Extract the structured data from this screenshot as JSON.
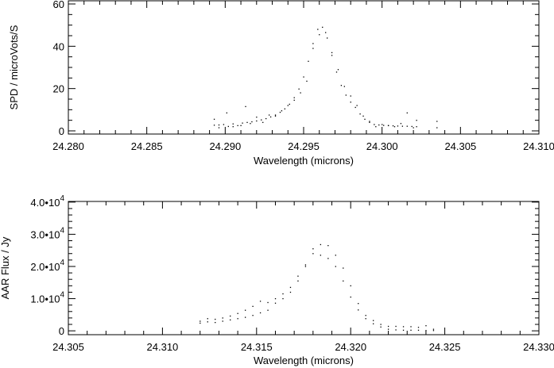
{
  "chart_data": [
    {
      "type": "scatter",
      "xlabel": "Wavelength (microns)",
      "ylabel": "SPD / microVots/S",
      "xlim": [
        24.28,
        24.31
      ],
      "ylim": [
        -1.5,
        61.5
      ],
      "xticks": [
        {
          "value": 24.28,
          "label": "24.280"
        },
        {
          "value": 24.285,
          "label": "24.285"
        },
        {
          "value": 24.29,
          "label": "24.290"
        },
        {
          "value": 24.295,
          "label": "24.295"
        },
        {
          "value": 24.3,
          "label": "24.300"
        },
        {
          "value": 24.305,
          "label": "24.305"
        },
        {
          "value": 24.31,
          "label": "24.310"
        }
      ],
      "x_minor_step": 0.001,
      "yticks": [
        {
          "value": 0,
          "label": "0"
        },
        {
          "value": 20,
          "label": "20"
        },
        {
          "value": 40,
          "label": "40"
        },
        {
          "value": 60,
          "label": "60"
        }
      ],
      "y_minor_step": 5,
      "grid": false,
      "marker_color": "#000000",
      "series": [
        {
          "x": [
            24.2893,
            24.2896,
            24.2899,
            24.2902,
            24.2905,
            24.2908,
            24.2911,
            24.2914,
            24.2917,
            24.292,
            24.2923,
            24.2926,
            24.2929,
            24.2932,
            24.2935,
            24.2938,
            24.2941,
            24.2944,
            24.2947,
            24.295,
            24.2953,
            24.2956,
            24.2959,
            24.2962,
            24.2965,
            24.2968,
            24.2971,
            24.2974,
            24.2977,
            24.298,
            24.2983,
            24.2986,
            24.2989,
            24.2992,
            24.2995,
            24.2998,
            24.3001,
            24.3004,
            24.3007,
            24.301,
            24.3013,
            24.3016,
            24.3019,
            24.3022,
            24.3035
          ],
          "y": [
            2.7,
            2.8,
            3.0,
            2.1,
            3.3,
            2.5,
            3.7,
            4.0,
            4.3,
            4.7,
            5.2,
            5.8,
            6.6,
            7.5,
            8.8,
            10.4,
            12.6,
            15.7,
            19.8,
            25.5,
            32.9,
            41.3,
            48.0,
            49.0,
            43.9,
            35.7,
            27.8,
            21.5,
            16.9,
            13.6,
            11.1,
            8.0,
            5.5,
            4.0,
            3.0,
            2.8,
            2.6,
            2.5,
            2.4,
            2.3,
            2.2,
            2.2,
            2.1,
            2.0,
            1.5
          ]
        },
        {
          "x": [
            24.2893,
            24.2896,
            24.2901,
            24.2905,
            24.291,
            24.2913,
            24.2916,
            24.292,
            24.2924,
            24.2928,
            24.2932,
            24.2936,
            24.294,
            24.2944,
            24.2948,
            24.2952,
            24.2956,
            24.296,
            24.2964,
            24.2968,
            24.2972,
            24.2976,
            24.298,
            24.2984,
            24.2988,
            24.2992,
            24.2996,
            24.3,
            24.3004,
            24.3008,
            24.3012,
            24.3016,
            24.302,
            24.3022,
            24.3035
          ],
          "y": [
            5.5,
            1.5,
            8.5,
            2.0,
            2.5,
            11.5,
            3.5,
            6.5,
            4.0,
            7.5,
            7.0,
            9.5,
            12.0,
            14.5,
            18.0,
            23.5,
            39.0,
            45.5,
            46.5,
            37.0,
            29.0,
            21.0,
            16.5,
            12.0,
            7.0,
            4.5,
            2.0,
            3.0,
            2.5,
            2.0,
            3.5,
            8.5,
            1.5,
            5.0,
            4.5
          ]
        }
      ]
    },
    {
      "type": "scatter",
      "xlabel": "Wavelength (microns)",
      "ylabel": "AAR Flux / Jy",
      "xlim": [
        24.305,
        24.33
      ],
      "ylim": [
        -1200,
        40200
      ],
      "xticks": [
        {
          "value": 24.305,
          "label": "24.305"
        },
        {
          "value": 24.31,
          "label": "24.310"
        },
        {
          "value": 24.315,
          "label": "24.315"
        },
        {
          "value": 24.32,
          "label": "24.320"
        },
        {
          "value": 24.325,
          "label": "24.325"
        },
        {
          "value": 24.33,
          "label": "24.330"
        }
      ],
      "x_minor_step": 0.001,
      "yticks": [
        {
          "value": 0,
          "label": "0",
          "exponent": ""
        },
        {
          "value": 10000,
          "label": "1.0•10",
          "exponent": "4"
        },
        {
          "value": 20000,
          "label": "2.0•10",
          "exponent": "4"
        },
        {
          "value": 30000,
          "label": "3.0•10",
          "exponent": "4"
        },
        {
          "value": 40000,
          "label": "4.0•10",
          "exponent": "4"
        }
      ],
      "y_minor_step": 2000,
      "grid": false,
      "marker_color": "#000000",
      "series": [
        {
          "x": [
            24.312,
            24.3124,
            24.3128,
            24.3132,
            24.3136,
            24.314,
            24.3144,
            24.3148,
            24.3152,
            24.3156,
            24.316,
            24.3164,
            24.3168,
            24.3172,
            24.3176,
            24.318,
            24.3184,
            24.3188,
            24.3192,
            24.3196,
            24.32,
            24.3204,
            24.3208,
            24.3212,
            24.3216,
            24.322,
            24.3224,
            24.3228,
            24.3232,
            24.3236,
            24.324,
            24.3244
          ],
          "y": [
            3000,
            3800,
            3600,
            4000,
            4600,
            5400,
            6400,
            7600,
            9200,
            8800,
            10000,
            11500,
            13500,
            17000,
            20500,
            25500,
            26800,
            26500,
            23500,
            19500,
            14000,
            8500,
            4800,
            3200,
            2000,
            1400,
            1400,
            1300,
            1300,
            1100,
            1600,
            500
          ]
        },
        {
          "x": [
            24.312,
            24.3124,
            24.3128,
            24.3132,
            24.3136,
            24.314,
            24.3144,
            24.3148,
            24.3152,
            24.3156,
            24.316,
            24.3164,
            24.3168,
            24.3172,
            24.3176,
            24.318,
            24.3184,
            24.3188,
            24.3192,
            24.3196,
            24.32,
            24.3204,
            24.3208,
            24.3212,
            24.3216,
            24.322,
            24.3224,
            24.3228,
            24.3232,
            24.3236,
            24.324,
            24.3244
          ],
          "y": [
            2400,
            2800,
            2600,
            3000,
            3400,
            3800,
            4200,
            4800,
            5600,
            6400,
            8600,
            10000,
            12000,
            15500,
            20000,
            24000,
            23500,
            22500,
            20000,
            15500,
            10500,
            6500,
            3800,
            2200,
            1200,
            500,
            300,
            200,
            200,
            200,
            100,
            100
          ]
        }
      ]
    }
  ]
}
